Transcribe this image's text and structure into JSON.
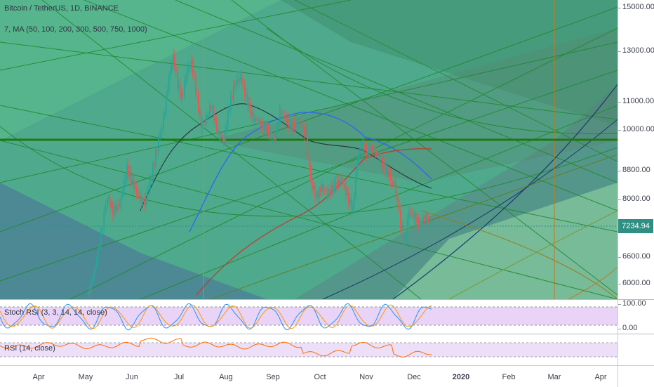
{
  "legend": {
    "symbol": "Bitcoin / TetherUS, 1D, BINANCE",
    "ma": "7, MA (50, 100, 200, 300, 500, 750, 1000)",
    "stoch": "Stoch RSI (3, 3, 14, 14, close)",
    "rsi": "RSI (14, close)"
  },
  "price_axis": {
    "ticks": [
      "15000.00",
      "13000.00",
      "11000.00",
      "10000.00",
      "8800.00",
      "8000.00",
      "6600.00",
      "6000.00"
    ],
    "current": "7234.94"
  },
  "stoch_axis": {
    "ticks": [
      "100.00",
      "0.00"
    ]
  },
  "time_axis": {
    "labels": [
      "Apr",
      "May",
      "Jun",
      "Jul",
      "Aug",
      "Sep",
      "Oct",
      "Nov",
      "Dec",
      "2020",
      "Feb",
      "Mar",
      "Apr"
    ]
  },
  "colors": {
    "up": "#26a69a",
    "down": "#ef5350",
    "ma_blue": "#2962ff",
    "ma_red": "#c0392b",
    "ma_dark": "#263238",
    "stoch_k": "#2196f3",
    "stoch_d": "#ff9800",
    "rsi": "#ff6d00",
    "band": "#e8d5f7"
  }
}
